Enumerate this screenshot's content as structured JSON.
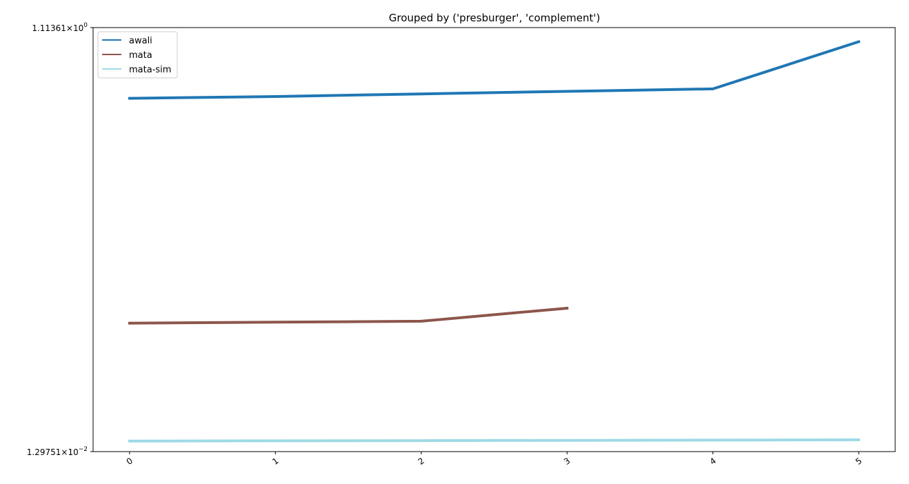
{
  "chart_data": {
    "type": "line",
    "title": "Grouped by ('presburger', 'complement')",
    "xlabel": "",
    "ylabel": "",
    "yscale": "log",
    "ylim": [
      0.0129751,
      1.11361
    ],
    "xlim": [
      -0.25,
      5.25
    ],
    "x": [
      0,
      1,
      2,
      3,
      4,
      5
    ],
    "xtick_labels": [
      "0",
      "1",
      "2",
      "3",
      "4",
      "5"
    ],
    "ytick_labels": [
      {
        "mantissa": "1.11361",
        "exponent": "0",
        "value": 1.11361
      },
      {
        "mantissa": "1.29751",
        "exponent": "−2",
        "value": 0.0129751
      }
    ],
    "grid": false,
    "legend_position": "top-left",
    "series": [
      {
        "name": "awali",
        "color": "#1f77b4",
        "x": [
          0,
          1,
          2,
          3,
          4,
          5
        ],
        "values": [
          0.53,
          0.54,
          0.555,
          0.57,
          0.585,
          0.96
        ]
      },
      {
        "name": "mata",
        "color": "#8c564b",
        "x": [
          0,
          1,
          2,
          3
        ],
        "values": [
          0.05,
          0.0505,
          0.051,
          0.0585
        ]
      },
      {
        "name": "mata-sim",
        "color": "#9edae5",
        "x": [
          0,
          1,
          2,
          3,
          4,
          5
        ],
        "values": [
          0.0145,
          0.01453,
          0.01456,
          0.0146,
          0.01463,
          0.01468
        ]
      }
    ]
  }
}
